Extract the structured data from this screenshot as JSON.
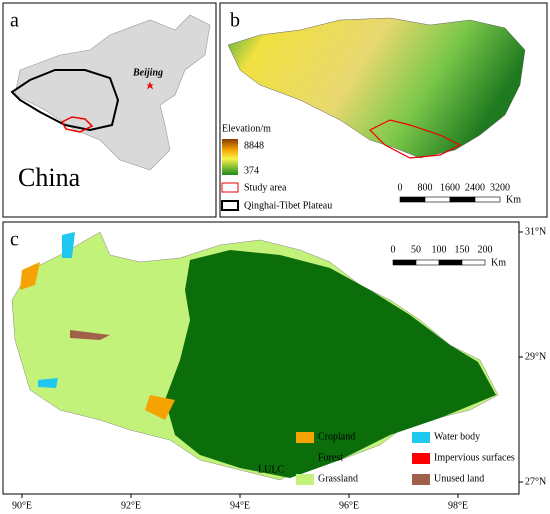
{
  "panel_a": {
    "label": "a",
    "country": "China",
    "capital": "Beijing"
  },
  "panel_b": {
    "label": "b",
    "legend_title": "Elevation/m",
    "elevation_high": "8848",
    "elevation_low": "374",
    "study_area": "Study area",
    "plateau": "Qinghai-Tibet Plateau",
    "scale_ticks": [
      "0",
      "800",
      "1600",
      "2400",
      "3200"
    ],
    "scale_unit": "Km"
  },
  "panel_c": {
    "label": "c",
    "latitudes": [
      "31°N",
      "29°N",
      "27°N"
    ],
    "longitudes": [
      "90°E",
      "92°E",
      "94°E",
      "96°E",
      "98°E"
    ],
    "scale_ticks": [
      "0",
      "50",
      "100",
      "150",
      "200"
    ],
    "scale_unit": "Km",
    "legend_title": "LULC",
    "classes": [
      {
        "name": "Cropland",
        "color": "#f5a300"
      },
      {
        "name": "Forest",
        "color": "#0b6e0b"
      },
      {
        "name": "Grassland",
        "color": "#c3f27a"
      },
      {
        "name": "Water body",
        "color": "#1ec8f0"
      },
      {
        "name": "Impervious surfaces",
        "color": "#ff0000"
      },
      {
        "name": "Unused land",
        "color": "#a0604a"
      }
    ]
  }
}
